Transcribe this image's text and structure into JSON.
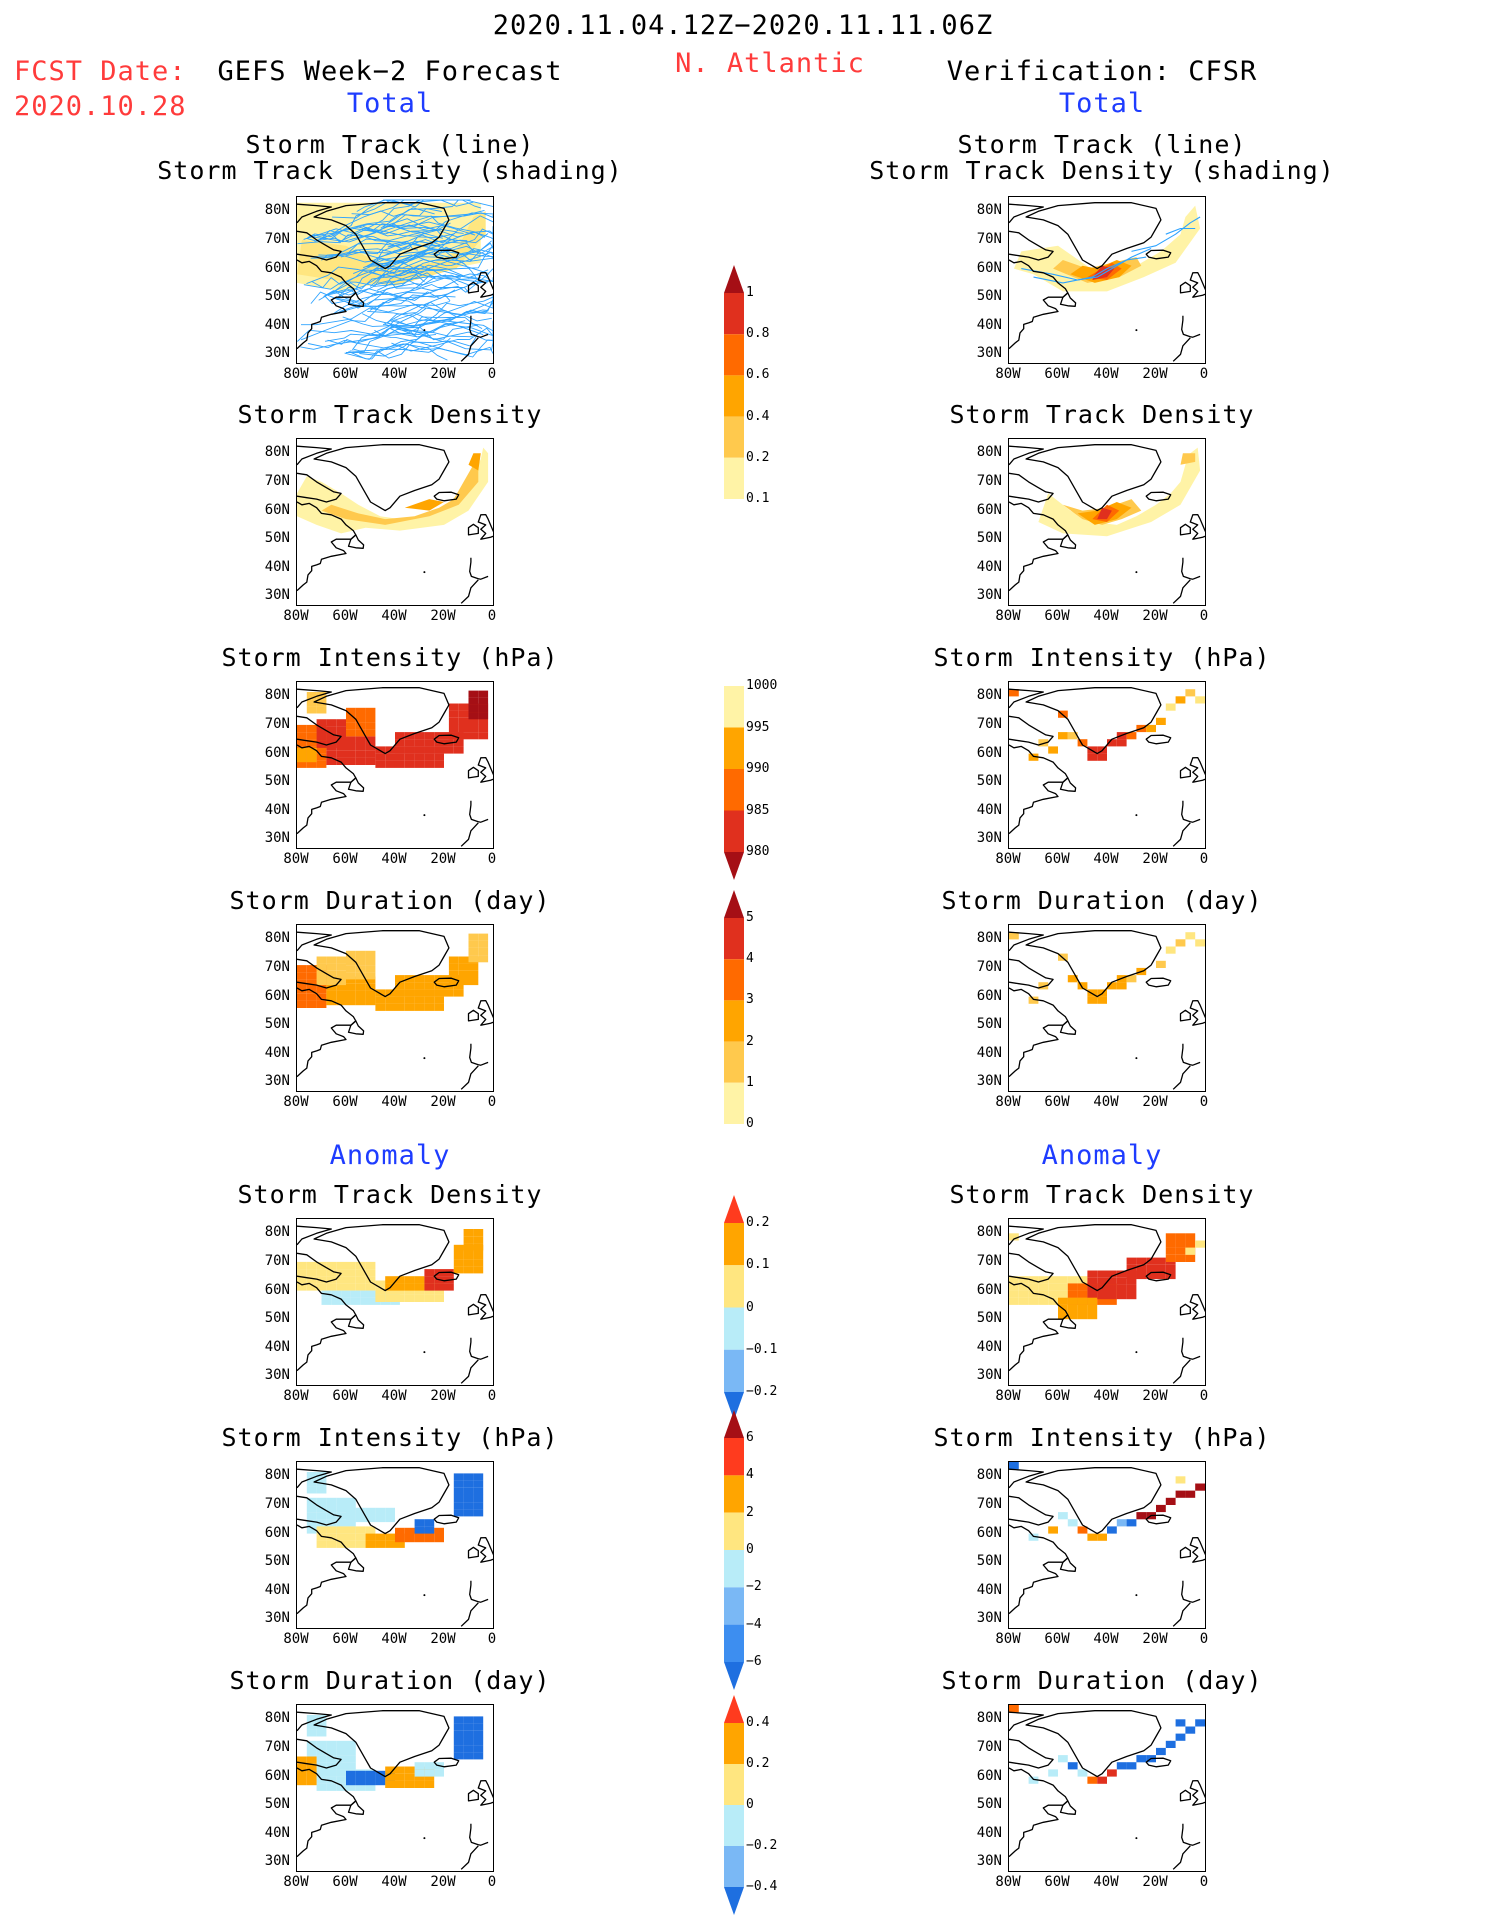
{
  "header": {
    "date_range": "2020.11.04.12Z−2020.11.11.06Z",
    "region": "N. Atlantic",
    "fcst_date_label": "FCST Date:",
    "fcst_date_value": "2020.10.28",
    "left_title": "GEFS Week−2 Forecast",
    "right_title": "Verification: CFSR",
    "total_label_left": "Total",
    "total_label_right": "Total",
    "anomaly_label_left": "Anomaly",
    "anomaly_label_right": "Anomaly"
  },
  "panel_titles": {
    "track_line": "Storm Track (line)",
    "track_density_shading": "Storm Track Density (shading)",
    "track_density": "Storm Track Density",
    "intensity": "Storm Intensity (hPa)",
    "duration": "Storm Duration (day)"
  },
  "axes": {
    "lat_ticks": [
      "80N",
      "70N",
      "60N",
      "50N",
      "40N",
      "30N"
    ],
    "lon_ticks": [
      "80W",
      "60W",
      "40W",
      "20W",
      "0"
    ]
  },
  "colorbars": {
    "density": {
      "labels": [
        "1",
        "0.8",
        "0.6",
        "0.4",
        "0.2",
        "0.1"
      ],
      "colors": [
        "#a50f15",
        "#e0301e",
        "#ff6a00",
        "#ffa500",
        "#ffc94d",
        "#fff3a6"
      ]
    },
    "intensity": {
      "labels": [
        "1000",
        "995",
        "990",
        "985",
        "980"
      ],
      "colors": [
        "#fff3a6",
        "#ffa500",
        "#ff6a00",
        "#e0301e",
        "#a50f15"
      ]
    },
    "duration": {
      "labels": [
        "5",
        "4",
        "3",
        "2",
        "1",
        "0"
      ],
      "colors": [
        "#a50f15",
        "#e0301e",
        "#ff6a00",
        "#ffa500",
        "#ffc94d",
        "#fff3a6"
      ]
    },
    "anom_density": {
      "labels": [
        "0.2",
        "0.1",
        "0",
        "−0.1",
        "−0.2"
      ],
      "colors": [
        "#ff3b1e",
        "#ffa500",
        "#ffe680",
        "#b8ecf8",
        "#7ab8f5",
        "#1e6fe0"
      ]
    },
    "anom_intensity": {
      "labels": [
        "6",
        "4",
        "2",
        "0",
        "−2",
        "−4",
        "−6"
      ],
      "colors": [
        "#a50f15",
        "#ff3b1e",
        "#ffa500",
        "#ffe680",
        "#b8ecf8",
        "#7ab8f5",
        "#3d8ef0",
        "#1e6fe0"
      ]
    },
    "anom_duration": {
      "labels": [
        "0.4",
        "0.2",
        "0",
        "−0.2",
        "−0.4"
      ],
      "colors": [
        "#ff3b1e",
        "#ffa500",
        "#ffe680",
        "#b8ecf8",
        "#7ab8f5",
        "#1e6fe0"
      ]
    }
  },
  "chart_data": [
    {
      "type": "heatmap",
      "panel": "GEFS Total Storm Track (line) / Density (shading)",
      "xlim": [
        "80W",
        "0"
      ],
      "ylim": [
        "30N",
        "85N"
      ]
    },
    {
      "type": "heatmap",
      "panel": "CFSR Total Storm Track (line) / Density (shading)",
      "xlim": [
        "80W",
        "0"
      ],
      "ylim": [
        "30N",
        "85N"
      ]
    },
    {
      "type": "heatmap",
      "panel": "GEFS Total Storm Track Density",
      "value_range": [
        0.1,
        1
      ]
    },
    {
      "type": "heatmap",
      "panel": "CFSR Total Storm Track Density",
      "value_range": [
        0.1,
        1
      ]
    },
    {
      "type": "heatmap",
      "panel": "GEFS Total Storm Intensity (hPa)",
      "value_range": [
        980,
        1000
      ]
    },
    {
      "type": "heatmap",
      "panel": "CFSR Total Storm Intensity (hPa)",
      "value_range": [
        980,
        1000
      ]
    },
    {
      "type": "heatmap",
      "panel": "GEFS Total Storm Duration (day)",
      "value_range": [
        0,
        5
      ]
    },
    {
      "type": "heatmap",
      "panel": "CFSR Total Storm Duration (day)",
      "value_range": [
        0,
        5
      ]
    },
    {
      "type": "heatmap",
      "panel": "GEFS Anomaly Storm Track Density",
      "value_range": [
        -0.2,
        0.2
      ]
    },
    {
      "type": "heatmap",
      "panel": "CFSR Anomaly Storm Track Density",
      "value_range": [
        -0.2,
        0.2
      ]
    },
    {
      "type": "heatmap",
      "panel": "GEFS Anomaly Storm Intensity (hPa)",
      "value_range": [
        -6,
        6
      ]
    },
    {
      "type": "heatmap",
      "panel": "CFSR Anomaly Storm Intensity (hPa)",
      "value_range": [
        -6,
        6
      ]
    },
    {
      "type": "heatmap",
      "panel": "GEFS Anomaly Storm Duration (day)",
      "value_range": [
        -0.4,
        0.4
      ]
    },
    {
      "type": "heatmap",
      "panel": "CFSR Anomaly Storm Duration (day)",
      "value_range": [
        -0.4,
        0.4
      ]
    }
  ]
}
